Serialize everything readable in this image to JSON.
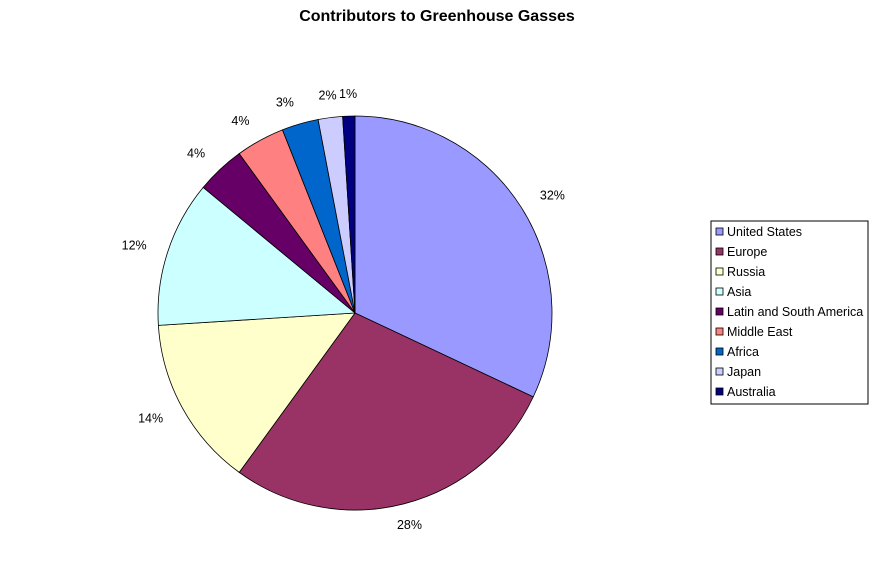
{
  "chart_data": {
    "type": "pie",
    "title": "Contributors to Greenhouse Gasses",
    "categories": [
      "United States",
      "Europe",
      "Russia",
      "Asia",
      "Latin and South America",
      "Middle East",
      "Africa",
      "Japan",
      "Australia"
    ],
    "values": [
      32,
      28,
      14,
      12,
      4,
      4,
      3,
      2,
      1
    ],
    "value_labels": [
      "32%",
      "28%",
      "14%",
      "12%",
      "4%",
      "4%",
      "3%",
      "2%",
      "1%"
    ],
    "colors": [
      "#9999FF",
      "#993366",
      "#FFFFCC",
      "#CCFFFF",
      "#660066",
      "#FF8080",
      "#0066CC",
      "#CCCCFF",
      "#000080"
    ],
    "legend_position": "right",
    "start_position": "top, clockwise"
  }
}
